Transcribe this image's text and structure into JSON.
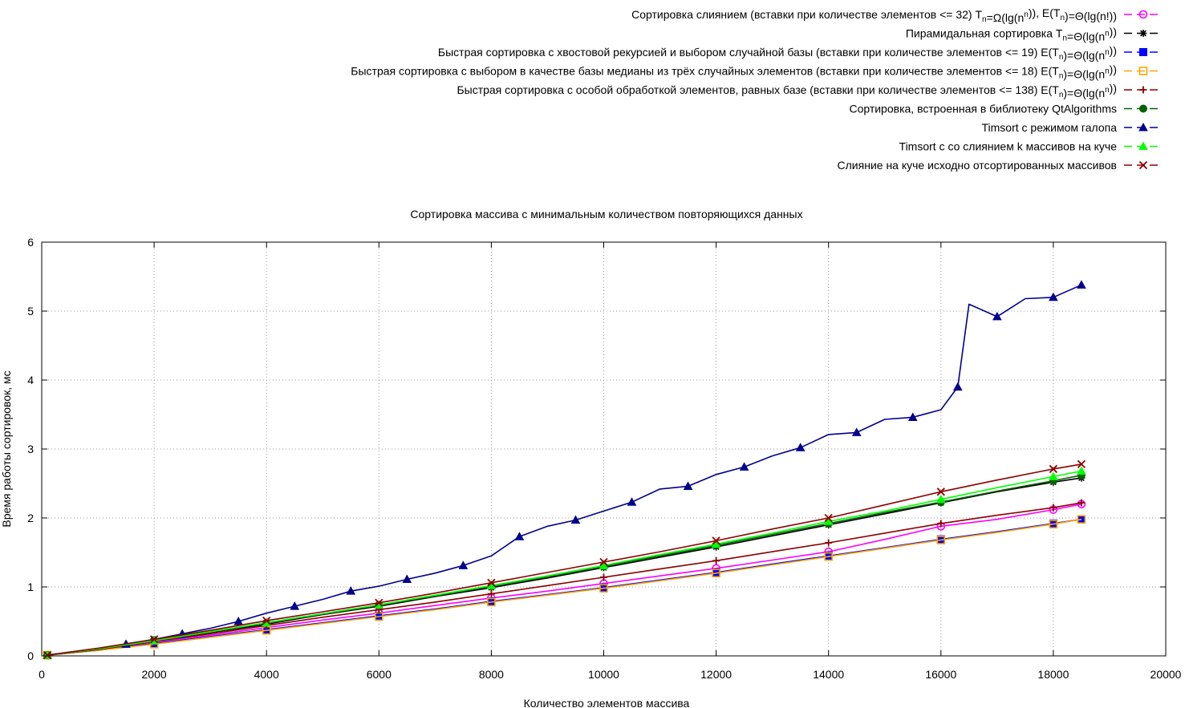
{
  "chart_data": {
    "type": "line",
    "title": "Сортировка массива с минимальным количеством повторяющихся данных",
    "xlabel": "Количество элементов массива",
    "ylabel": "Время работы сортировок, мс",
    "xlim": [
      0,
      20000
    ],
    "ylim": [
      0,
      6
    ],
    "x_ticks": [
      0,
      2000,
      4000,
      6000,
      8000,
      10000,
      12000,
      14000,
      16000,
      18000,
      20000
    ],
    "y_ticks": [
      0,
      1,
      2,
      3,
      4,
      5,
      6
    ],
    "x_tick_labels": [
      "0",
      "2000",
      "4000",
      "6000",
      "8000",
      "10000",
      "12000",
      "14000",
      "16000",
      "18000",
      "20000"
    ],
    "y_tick_labels": [
      "0",
      "1",
      "2",
      "3",
      "4",
      "5",
      "6"
    ],
    "grid": true,
    "legend_position": "top-right",
    "series": [
      {
        "name": "Сортировка слиянием (вставки при количестве элементов <= 32) Tn=Ω(lg(nⁿ)), E(Tn)=Θ(lg(n!))",
        "legend_parts": [
          {
            "t": "Сортировка слиянием (вставки при количестве элементов <= 32) T"
          },
          {
            "t": "n",
            "sub": true
          },
          {
            "t": "=Ω(lg(n"
          },
          {
            "t": "n",
            "sup": true
          },
          {
            "t": ")), E(T"
          },
          {
            "t": "n",
            "sub": true
          },
          {
            "t": ")=Θ(lg(n!))"
          }
        ],
        "color": "#ff00ff",
        "marker": "circle-open",
        "x": [
          100,
          1000,
          2000,
          3000,
          4000,
          5000,
          6000,
          7000,
          8000,
          9000,
          10000,
          11000,
          12000,
          13000,
          14000,
          15000,
          16000,
          17000,
          18000,
          18500
        ],
        "y": [
          0.01,
          0.09,
          0.2,
          0.3,
          0.41,
          0.52,
          0.62,
          0.73,
          0.84,
          0.94,
          1.05,
          1.16,
          1.27,
          1.39,
          1.51,
          1.69,
          1.88,
          1.98,
          2.12,
          2.2
        ]
      },
      {
        "name": "Пирамидальная сортировка Tn=Θ(lg(nⁿ))",
        "legend_parts": [
          {
            "t": "Пирамидальная сортировка T"
          },
          {
            "t": "n",
            "sub": true
          },
          {
            "t": "=Θ(lg(n"
          },
          {
            "t": "n",
            "sup": true
          },
          {
            "t": "))"
          }
        ],
        "color": "#000000",
        "marker": "star",
        "x": [
          100,
          1000,
          2000,
          3000,
          4000,
          5000,
          6000,
          7000,
          8000,
          9000,
          10000,
          11000,
          12000,
          13000,
          14000,
          15000,
          16000,
          17000,
          18000,
          18500
        ],
        "y": [
          0.01,
          0.1,
          0.22,
          0.34,
          0.46,
          0.6,
          0.72,
          0.86,
          0.99,
          1.13,
          1.28,
          1.43,
          1.58,
          1.74,
          1.9,
          2.06,
          2.22,
          2.38,
          2.52,
          2.58
        ]
      },
      {
        "name": "Быстрая сортировка с хвостовой рекурсией и выбором случайной базы (вставки при количестве элементов <= 19) E(Tn)=Θ(lg(nⁿ))",
        "legend_parts": [
          {
            "t": "Быстрая сортировка с хвостовой рекурсией и выбором случайной базы (вставки при количестве элементов <= 19) E(T"
          },
          {
            "t": "n",
            "sub": true
          },
          {
            "t": ")=Θ(lg(n"
          },
          {
            "t": "n",
            "sup": true
          },
          {
            "t": "))"
          }
        ],
        "color": "#0000ff",
        "marker": "square-filled",
        "x": [
          100,
          1000,
          2000,
          3000,
          4000,
          5000,
          6000,
          7000,
          8000,
          9000,
          10000,
          11000,
          12000,
          13000,
          14000,
          15000,
          16000,
          17000,
          18000,
          18500
        ],
        "y": [
          0.01,
          0.08,
          0.18,
          0.28,
          0.38,
          0.48,
          0.58,
          0.68,
          0.79,
          0.89,
          0.99,
          1.1,
          1.21,
          1.33,
          1.45,
          1.57,
          1.69,
          1.8,
          1.92,
          1.98
        ]
      },
      {
        "name": "Быстрая сортировка с выбором в качестве базы медианы из трёх случайных элементов (вставки при количестве элементов <= 18) E(Tn)=Θ(lg(nⁿ))",
        "legend_parts": [
          {
            "t": "Быстрая сортировка с выбором в качестве базы медианы из трёх случайных элементов (вставки при количестве элементов <= 18) E(T"
          },
          {
            "t": "n",
            "sub": true
          },
          {
            "t": ")=Θ(lg(n"
          },
          {
            "t": "n",
            "sup": true
          },
          {
            "t": "))"
          }
        ],
        "color": "#ffa500",
        "marker": "square-open",
        "x": [
          100,
          1000,
          2000,
          3000,
          4000,
          5000,
          6000,
          7000,
          8000,
          9000,
          10000,
          11000,
          12000,
          13000,
          14000,
          15000,
          16000,
          17000,
          18000,
          18500
        ],
        "y": [
          0.01,
          0.08,
          0.17,
          0.27,
          0.37,
          0.47,
          0.57,
          0.67,
          0.78,
          0.88,
          0.98,
          1.09,
          1.2,
          1.32,
          1.44,
          1.56,
          1.68,
          1.79,
          1.91,
          1.98
        ]
      },
      {
        "name": "Быстрая сортировка с особой обработкой элементов, равных базе (вставки при количестве элементов <= 138) E(Tn)=Θ(lg(nⁿ))",
        "legend_parts": [
          {
            "t": "Быстрая сортировка с особой обработкой элементов, равных базе (вставки при количестве элементов <= 138) E(T"
          },
          {
            "t": "n",
            "sub": true
          },
          {
            "t": ")=Θ(lg(n"
          },
          {
            "t": "n",
            "sup": true
          },
          {
            "t": "))"
          }
        ],
        "color": "#8b0000",
        "marker": "plus",
        "x": [
          100,
          1000,
          2000,
          3000,
          4000,
          5000,
          6000,
          7000,
          8000,
          9000,
          10000,
          11000,
          12000,
          13000,
          14000,
          15000,
          16000,
          17000,
          18000,
          18500
        ],
        "y": [
          0.01,
          0.09,
          0.21,
          0.32,
          0.44,
          0.56,
          0.67,
          0.78,
          0.9,
          1.02,
          1.14,
          1.26,
          1.38,
          1.51,
          1.64,
          1.78,
          1.92,
          2.04,
          2.15,
          2.22
        ]
      },
      {
        "name": "Сортировка, встроенная в библиотеку QtAlgorithms",
        "legend_parts": [
          {
            "t": "Сортировка, встроенная в библиотеку QtAlgorithms"
          }
        ],
        "color": "#006400",
        "marker": "circle-filled",
        "x": [
          100,
          1000,
          2000,
          3000,
          4000,
          5000,
          6000,
          7000,
          8000,
          9000,
          10000,
          11000,
          12000,
          13000,
          14000,
          15000,
          16000,
          17000,
          18000,
          18500
        ],
        "y": [
          0.01,
          0.1,
          0.23,
          0.35,
          0.48,
          0.61,
          0.74,
          0.87,
          1.01,
          1.15,
          1.3,
          1.45,
          1.6,
          1.76,
          1.92,
          2.08,
          2.23,
          2.39,
          2.54,
          2.62
        ]
      },
      {
        "name": "Timsort с режимом галопа",
        "legend_parts": [
          {
            "t": "Timsort с режимом галопа"
          }
        ],
        "color": "#00008b",
        "marker": "triangle",
        "x": [
          100,
          1000,
          1500,
          2000,
          2500,
          3000,
          3500,
          4000,
          4500,
          5000,
          5500,
          6000,
          6500,
          7000,
          7500,
          8000,
          8500,
          9000,
          9500,
          10000,
          10500,
          11000,
          11500,
          12000,
          12500,
          13000,
          13500,
          14000,
          14500,
          15000,
          15500,
          16000,
          16300,
          16500,
          17000,
          17500,
          18000,
          18500
        ],
        "y": [
          0.01,
          0.11,
          0.17,
          0.24,
          0.32,
          0.4,
          0.5,
          0.62,
          0.72,
          0.82,
          0.94,
          1.01,
          1.11,
          1.2,
          1.31,
          1.45,
          1.73,
          1.88,
          1.97,
          2.1,
          2.23,
          2.42,
          2.46,
          2.63,
          2.74,
          2.9,
          3.02,
          3.21,
          3.24,
          3.43,
          3.46,
          3.57,
          3.9,
          5.1,
          4.92,
          5.18,
          5.2,
          5.38
        ]
      },
      {
        "name": "Timsort с со слиянием k массивов на куче",
        "legend_parts": [
          {
            "t": "Timsort с со слиянием k массивов на куче"
          }
        ],
        "color": "#00ff00",
        "marker": "triangle",
        "x": [
          100,
          1000,
          2000,
          3000,
          4000,
          5000,
          6000,
          7000,
          8000,
          9000,
          10000,
          11000,
          12000,
          13000,
          14000,
          15000,
          16000,
          17000,
          18000,
          18500
        ],
        "y": [
          0.01,
          0.1,
          0.22,
          0.35,
          0.48,
          0.61,
          0.74,
          0.88,
          1.02,
          1.16,
          1.31,
          1.47,
          1.62,
          1.78,
          1.95,
          2.1,
          2.27,
          2.44,
          2.6,
          2.68
        ]
      },
      {
        "name": "Слияние на куче исходно отсортированных массивов",
        "legend_parts": [
          {
            "t": "Слияние на куче исходно отсортированных массивов"
          }
        ],
        "color": "#8b0000",
        "marker": "cross",
        "x": [
          100,
          1000,
          2000,
          3000,
          4000,
          5000,
          6000,
          7000,
          8000,
          9000,
          10000,
          11000,
          12000,
          13000,
          14000,
          15000,
          16000,
          17000,
          18000,
          18500
        ],
        "y": [
          0.01,
          0.11,
          0.24,
          0.37,
          0.51,
          0.64,
          0.77,
          0.91,
          1.06,
          1.21,
          1.36,
          1.51,
          1.67,
          1.84,
          2.0,
          2.19,
          2.38,
          2.55,
          2.71,
          2.78
        ]
      }
    ]
  }
}
